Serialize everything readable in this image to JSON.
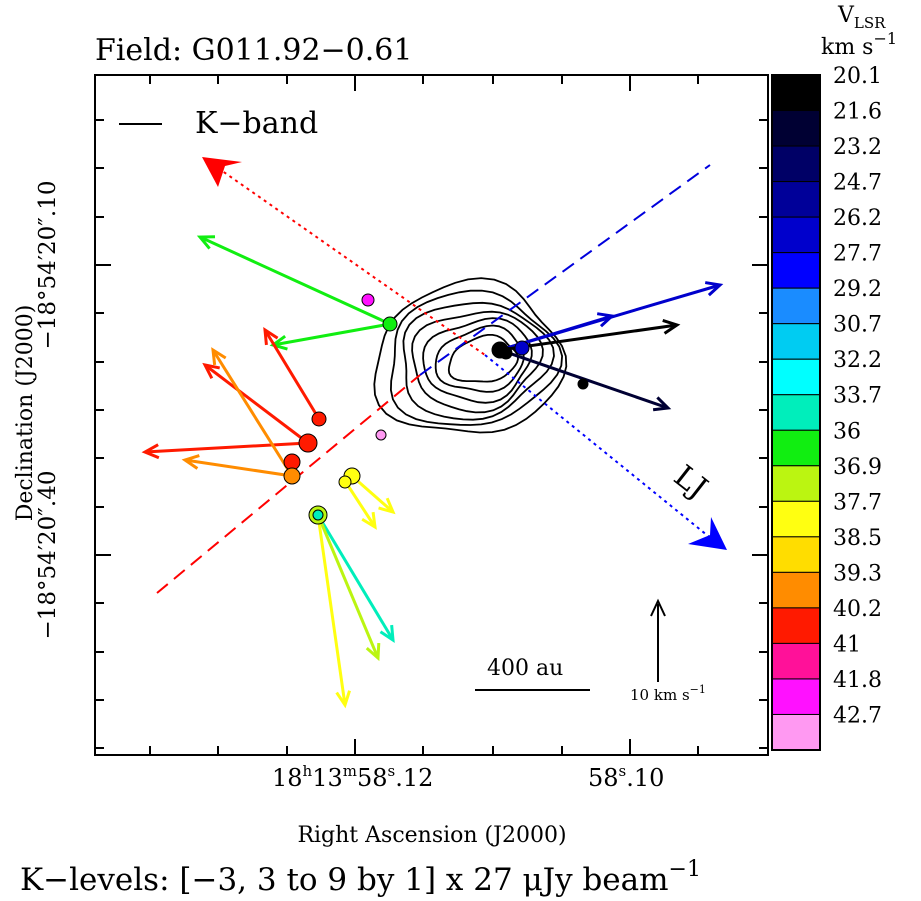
{
  "chart_data": {
    "type": "scatter",
    "title": "Field: G011.92−0.61",
    "xlabel": "Right Ascension (J2000)",
    "ylabel": "Declination (J2000)",
    "x_tick_labels": [
      {
        "pre": "18",
        "sup1": "h",
        "mid1": "13",
        "sup2": "m",
        "mid2": "58",
        "sup3": "s",
        "post": ".12"
      },
      {
        "pre": "58",
        "sup1": "s",
        "mid1": ".10",
        "sup2": "",
        "mid2": "",
        "sup3": "",
        "post": ""
      }
    ],
    "y_tick_labels": [
      "−18°54′20″.10",
      "−18°54′20″.40"
    ],
    "legend": {
      "label": "K−band",
      "position": "top-left"
    },
    "colorbar": {
      "title": "V",
      "title_sub": "LSR",
      "unit": "km s",
      "unit_exp": "−1",
      "levels": [
        "20.1",
        "21.6",
        "23.2",
        "24.7",
        "26.2",
        "27.7",
        "29.2",
        "30.7",
        "32.2",
        "33.7",
        "36",
        "36.9",
        "37.7",
        "38.5",
        "39.3",
        "40.2",
        "41",
        "41.8",
        "42.7"
      ],
      "colors": [
        "#000000",
        "#000033",
        "#000066",
        "#000099",
        "#0000cc",
        "#0000ff",
        "#1a8cff",
        "#00ccf2",
        "#00ffff",
        "#00eebb",
        "#11ee11",
        "#bbf511",
        "#ffff11",
        "#ffdd00",
        "#ff8c00",
        "#ff1a00",
        "#ff1199",
        "#ff11ff",
        "#ff99f2"
      ]
    },
    "jet_label": "LJ",
    "scale_bar": {
      "label": "400 au"
    },
    "velocity_scale": {
      "value": "10",
      "unit": "km s",
      "unit_exp": "−1"
    },
    "footer": {
      "text": "K−levels: [−3, 3 to 9 by 1]  x 27 μJy beam",
      "exp": "−1"
    },
    "contours": {
      "levels": [
        3,
        4,
        5,
        6,
        7,
        8,
        9
      ],
      "unit": "27 μJy beam⁻¹"
    }
  }
}
